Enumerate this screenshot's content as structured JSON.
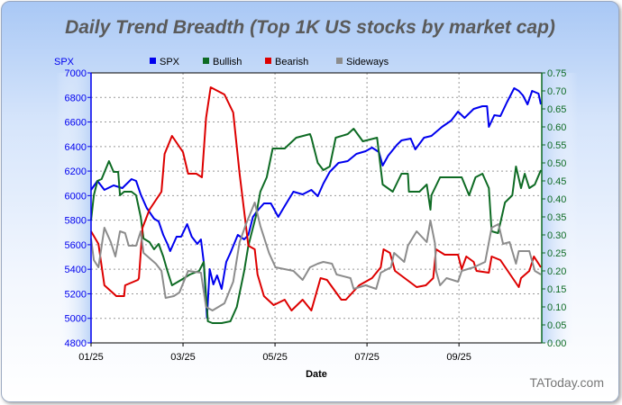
{
  "chart_data": {
    "type": "line",
    "title": "Daily Trend Breadth (Top 1K US stocks by market cap)",
    "xlabel": "Date",
    "ylabel_left": "SPX",
    "x_unit": "months since 01/25",
    "x_ticks": [
      {
        "t": 0,
        "label": "01/25"
      },
      {
        "t": 2,
        "label": "03/25"
      },
      {
        "t": 4,
        "label": "05/25"
      },
      {
        "t": 6,
        "label": "07/25"
      },
      {
        "t": 8,
        "label": "09/25"
      }
    ],
    "xlim": [
      0,
      9.8
    ],
    "ylim_left": [
      4800,
      7000
    ],
    "y_ticks_left": [
      "4800",
      "5000",
      "5200",
      "5400",
      "5600",
      "5800",
      "6000",
      "6200",
      "6400",
      "6600",
      "6800",
      "7000"
    ],
    "ylim_right": [
      0,
      0.75
    ],
    "y_ticks_right": [
      "0.00",
      "0.05",
      "0.10",
      "0.15",
      "0.20",
      "0.25",
      "0.30",
      "0.35",
      "0.40",
      "0.45",
      "0.50",
      "0.55",
      "0.60",
      "0.65",
      "0.70",
      "0.75"
    ],
    "grid": true,
    "legend_position": "top",
    "watermark": "TAToday.com",
    "series": [
      {
        "name": "SPX",
        "axis": "left",
        "color": "#0000ee",
        "points": [
          [
            0,
            6047
          ],
          [
            0.14,
            6120
          ],
          [
            0.29,
            6047
          ],
          [
            0.49,
            6083
          ],
          [
            0.68,
            6061
          ],
          [
            0.88,
            6135
          ],
          [
            0.98,
            6120
          ],
          [
            1.08,
            6010
          ],
          [
            1.21,
            5900
          ],
          [
            1.37,
            5812
          ],
          [
            1.47,
            5790
          ],
          [
            1.57,
            5680
          ],
          [
            1.66,
            5607
          ],
          [
            1.72,
            5548
          ],
          [
            1.86,
            5665
          ],
          [
            1.96,
            5665
          ],
          [
            2.09,
            5768
          ],
          [
            2.19,
            5665
          ],
          [
            2.31,
            5607
          ],
          [
            2.39,
            5643
          ],
          [
            2.45,
            5460
          ],
          [
            2.52,
            5005
          ],
          [
            2.58,
            5401
          ],
          [
            2.66,
            5277
          ],
          [
            2.74,
            5350
          ],
          [
            2.84,
            5240
          ],
          [
            2.94,
            5460
          ],
          [
            3.03,
            5533
          ],
          [
            3.19,
            5680
          ],
          [
            3.33,
            5643
          ],
          [
            3.42,
            5680
          ],
          [
            3.52,
            5827
          ],
          [
            3.62,
            5878
          ],
          [
            3.76,
            5937
          ],
          [
            3.91,
            5937
          ],
          [
            4.07,
            5827
          ],
          [
            4.21,
            5915
          ],
          [
            4.4,
            6032
          ],
          [
            4.6,
            6010
          ],
          [
            4.79,
            6047
          ],
          [
            4.93,
            5995
          ],
          [
            5.05,
            6098
          ],
          [
            5.19,
            6193
          ],
          [
            5.38,
            6267
          ],
          [
            5.58,
            6281
          ],
          [
            5.77,
            6340
          ],
          [
            5.97,
            6362
          ],
          [
            6.11,
            6391
          ],
          [
            6.26,
            6355
          ],
          [
            6.34,
            6245
          ],
          [
            6.46,
            6325
          ],
          [
            6.65,
            6413
          ],
          [
            6.75,
            6450
          ],
          [
            6.95,
            6465
          ],
          [
            7.05,
            6377
          ],
          [
            7.24,
            6472
          ],
          [
            7.4,
            6487
          ],
          [
            7.63,
            6560
          ],
          [
            7.83,
            6611
          ],
          [
            7.98,
            6685
          ],
          [
            8.12,
            6633
          ],
          [
            8.32,
            6707
          ],
          [
            8.51,
            6729
          ],
          [
            8.61,
            6729
          ],
          [
            8.65,
            6560
          ],
          [
            8.77,
            6655
          ],
          [
            8.9,
            6648
          ],
          [
            9.04,
            6758
          ],
          [
            9.2,
            6875
          ],
          [
            9.3,
            6853
          ],
          [
            9.39,
            6817
          ],
          [
            9.49,
            6743
          ],
          [
            9.59,
            6853
          ],
          [
            9.73,
            6831
          ],
          [
            9.78,
            6743
          ]
        ]
      },
      {
        "name": "Bullish",
        "axis": "right",
        "color": "#0e6b24",
        "points": [
          [
            0,
            0.34
          ],
          [
            0.06,
            0.41
          ],
          [
            0.14,
            0.45
          ],
          [
            0.23,
            0.455
          ],
          [
            0.39,
            0.505
          ],
          [
            0.49,
            0.475
          ],
          [
            0.59,
            0.475
          ],
          [
            0.63,
            0.41
          ],
          [
            0.72,
            0.42
          ],
          [
            0.88,
            0.42
          ],
          [
            0.98,
            0.41
          ],
          [
            1.08,
            0.35
          ],
          [
            1.14,
            0.29
          ],
          [
            1.27,
            0.28
          ],
          [
            1.37,
            0.26
          ],
          [
            1.47,
            0.275
          ],
          [
            1.57,
            0.24
          ],
          [
            1.66,
            0.2
          ],
          [
            1.76,
            0.16
          ],
          [
            1.96,
            0.175
          ],
          [
            2.15,
            0.19
          ],
          [
            2.35,
            0.2
          ],
          [
            2.45,
            0.225
          ],
          [
            2.54,
            0.06
          ],
          [
            2.64,
            0.055
          ],
          [
            2.84,
            0.055
          ],
          [
            3.03,
            0.06
          ],
          [
            3.17,
            0.1
          ],
          [
            3.33,
            0.2
          ],
          [
            3.42,
            0.27
          ],
          [
            3.58,
            0.35
          ],
          [
            3.68,
            0.42
          ],
          [
            3.82,
            0.46
          ],
          [
            3.95,
            0.54
          ],
          [
            4.21,
            0.54
          ],
          [
            4.46,
            0.57
          ],
          [
            4.76,
            0.58
          ],
          [
            4.79,
            0.57
          ],
          [
            4.93,
            0.5
          ],
          [
            5.05,
            0.48
          ],
          [
            5.19,
            0.49
          ],
          [
            5.32,
            0.57
          ],
          [
            5.58,
            0.58
          ],
          [
            5.71,
            0.595
          ],
          [
            5.91,
            0.56
          ],
          [
            6.22,
            0.57
          ],
          [
            6.34,
            0.44
          ],
          [
            6.56,
            0.42
          ],
          [
            6.75,
            0.47
          ],
          [
            6.89,
            0.47
          ],
          [
            6.91,
            0.42
          ],
          [
            7.14,
            0.42
          ],
          [
            7.3,
            0.44
          ],
          [
            7.38,
            0.37
          ],
          [
            7.4,
            0.41
          ],
          [
            7.59,
            0.46
          ],
          [
            7.79,
            0.46
          ],
          [
            8.06,
            0.46
          ],
          [
            8.22,
            0.41
          ],
          [
            8.36,
            0.46
          ],
          [
            8.51,
            0.47
          ],
          [
            8.65,
            0.43
          ],
          [
            8.71,
            0.31
          ],
          [
            8.85,
            0.305
          ],
          [
            9.0,
            0.39
          ],
          [
            9.16,
            0.41
          ],
          [
            9.24,
            0.49
          ],
          [
            9.35,
            0.43
          ],
          [
            9.43,
            0.47
          ],
          [
            9.53,
            0.43
          ],
          [
            9.65,
            0.44
          ],
          [
            9.78,
            0.48
          ]
        ]
      },
      {
        "name": "Bearish",
        "axis": "right",
        "color": "#dd0000",
        "points": [
          [
            0,
            0.31
          ],
          [
            0.16,
            0.275
          ],
          [
            0.29,
            0.16
          ],
          [
            0.55,
            0.13
          ],
          [
            0.72,
            0.13
          ],
          [
            0.74,
            0.16
          ],
          [
            1.02,
            0.175
          ],
          [
            1.04,
            0.18
          ],
          [
            1.12,
            0.32
          ],
          [
            1.27,
            0.37
          ],
          [
            1.53,
            0.42
          ],
          [
            1.6,
            0.525
          ],
          [
            1.76,
            0.575
          ],
          [
            2.0,
            0.53
          ],
          [
            2.11,
            0.47
          ],
          [
            2.29,
            0.47
          ],
          [
            2.41,
            0.46
          ],
          [
            2.5,
            0.625
          ],
          [
            2.6,
            0.71
          ],
          [
            2.9,
            0.69
          ],
          [
            3.09,
            0.64
          ],
          [
            3.23,
            0.47
          ],
          [
            3.42,
            0.27
          ],
          [
            3.56,
            0.26
          ],
          [
            3.62,
            0.19
          ],
          [
            3.76,
            0.13
          ],
          [
            3.97,
            0.105
          ],
          [
            4.21,
            0.12
          ],
          [
            4.36,
            0.09
          ],
          [
            4.6,
            0.12
          ],
          [
            4.79,
            0.09
          ],
          [
            4.99,
            0.18
          ],
          [
            5.13,
            0.175
          ],
          [
            5.44,
            0.12
          ],
          [
            5.54,
            0.12
          ],
          [
            5.83,
            0.16
          ],
          [
            6.11,
            0.18
          ],
          [
            6.3,
            0.21
          ],
          [
            6.36,
            0.26
          ],
          [
            6.5,
            0.25
          ],
          [
            6.61,
            0.2
          ],
          [
            7.08,
            0.155
          ],
          [
            7.28,
            0.16
          ],
          [
            7.44,
            0.18
          ],
          [
            7.5,
            0.26
          ],
          [
            7.69,
            0.245
          ],
          [
            7.98,
            0.245
          ],
          [
            8.06,
            0.205
          ],
          [
            8.16,
            0.24
          ],
          [
            8.32,
            0.225
          ],
          [
            8.38,
            0.2
          ],
          [
            8.65,
            0.195
          ],
          [
            8.71,
            0.24
          ],
          [
            8.9,
            0.23
          ],
          [
            9.3,
            0.155
          ],
          [
            9.35,
            0.18
          ],
          [
            9.53,
            0.2
          ],
          [
            9.63,
            0.24
          ],
          [
            9.78,
            0.21
          ]
        ]
      },
      {
        "name": "Sideways",
        "axis": "right",
        "color": "#8c8c8c",
        "points": [
          [
            0,
            0.29
          ],
          [
            0.06,
            0.23
          ],
          [
            0.16,
            0.21
          ],
          [
            0.29,
            0.32
          ],
          [
            0.43,
            0.28
          ],
          [
            0.53,
            0.24
          ],
          [
            0.63,
            0.31
          ],
          [
            0.74,
            0.305
          ],
          [
            0.82,
            0.27
          ],
          [
            0.98,
            0.27
          ],
          [
            1.08,
            0.31
          ],
          [
            1.14,
            0.25
          ],
          [
            1.41,
            0.22
          ],
          [
            1.53,
            0.2
          ],
          [
            1.62,
            0.125
          ],
          [
            1.8,
            0.13
          ],
          [
            1.92,
            0.14
          ],
          [
            2.11,
            0.2
          ],
          [
            2.39,
            0.195
          ],
          [
            2.5,
            0.1
          ],
          [
            2.64,
            0.09
          ],
          [
            2.9,
            0.11
          ],
          [
            3.09,
            0.17
          ],
          [
            3.23,
            0.28
          ],
          [
            3.37,
            0.33
          ],
          [
            3.56,
            0.39
          ],
          [
            3.68,
            0.325
          ],
          [
            3.87,
            0.25
          ],
          [
            4.01,
            0.21
          ],
          [
            4.4,
            0.2
          ],
          [
            4.6,
            0.175
          ],
          [
            4.76,
            0.21
          ],
          [
            4.93,
            0.22
          ],
          [
            5.05,
            0.225
          ],
          [
            5.24,
            0.22
          ],
          [
            5.34,
            0.19
          ],
          [
            5.64,
            0.18
          ],
          [
            5.71,
            0.15
          ],
          [
            5.97,
            0.16
          ],
          [
            6.2,
            0.15
          ],
          [
            6.3,
            0.195
          ],
          [
            6.52,
            0.21
          ],
          [
            6.59,
            0.25
          ],
          [
            6.81,
            0.225
          ],
          [
            6.89,
            0.27
          ],
          [
            7.08,
            0.31
          ],
          [
            7.3,
            0.28
          ],
          [
            7.38,
            0.34
          ],
          [
            7.48,
            0.275
          ],
          [
            7.5,
            0.2
          ],
          [
            7.59,
            0.16
          ],
          [
            7.73,
            0.18
          ],
          [
            7.98,
            0.17
          ],
          [
            8.06,
            0.2
          ],
          [
            8.32,
            0.21
          ],
          [
            8.57,
            0.225
          ],
          [
            8.71,
            0.32
          ],
          [
            8.86,
            0.33
          ],
          [
            8.96,
            0.275
          ],
          [
            9.1,
            0.28
          ],
          [
            9.24,
            0.22
          ],
          [
            9.3,
            0.255
          ],
          [
            9.53,
            0.255
          ],
          [
            9.65,
            0.2
          ],
          [
            9.78,
            0.19
          ]
        ]
      }
    ]
  }
}
